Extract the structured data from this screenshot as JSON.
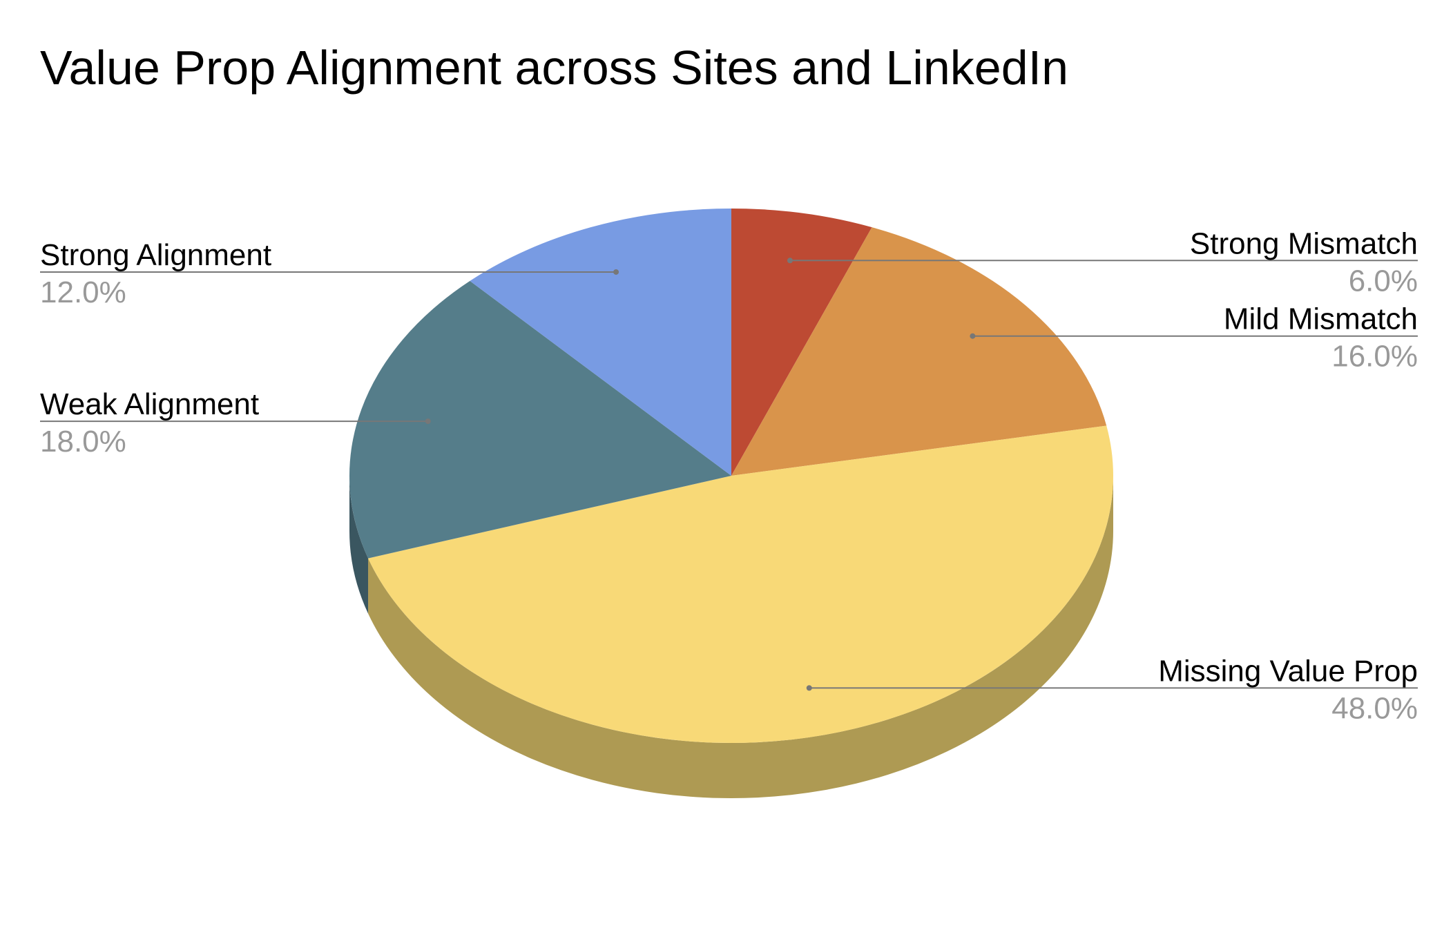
{
  "chart_data": {
    "type": "pie",
    "title": "Value Prop Alignment across Sites and LinkedIn",
    "style": "3d",
    "slices": [
      {
        "label": "Strong Mismatch",
        "value": 6.0,
        "display": "6.0%",
        "color": "#bd4a33",
        "side_color": "#7d3122"
      },
      {
        "label": "Mild Mismatch",
        "value": 16.0,
        "display": "16.0%",
        "color": "#d9944b",
        "side_color": "#9a6a36"
      },
      {
        "label": "Missing Value Prop",
        "value": 48.0,
        "display": "48.0%",
        "color": "#f8d977",
        "side_color": "#ae9a53"
      },
      {
        "label": "Weak Alignment",
        "value": 18.0,
        "display": "18.0%",
        "color": "#557d8a",
        "side_color": "#3a5660"
      },
      {
        "label": "Strong Alignment",
        "value": 12.0,
        "display": "12.0%",
        "color": "#789be3",
        "side_color": "#56709f"
      }
    ],
    "label_color": "#000000",
    "value_color": "#999999",
    "leader_color": "#777777"
  }
}
